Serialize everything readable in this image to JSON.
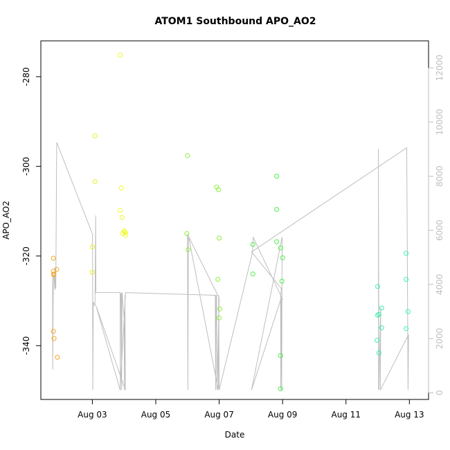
{
  "chart_data": {
    "type": "scatter",
    "title": "ATOM1 Southbound APO_AO2",
    "xlabel": "Date",
    "ylabel": "APO_AO2",
    "x_ticks": [
      "Aug 03",
      "Aug 05",
      "Aug 07",
      "Aug 09",
      "Aug 11",
      "Aug 13"
    ],
    "y_ticks": [
      -280,
      -300,
      -320,
      -340
    ],
    "y2_ticks": [
      0,
      2000,
      4000,
      6000,
      8000,
      10000,
      12000
    ],
    "xlim": [
      "2008-08-01 09:00",
      "2008-08-13 14:30"
    ],
    "ylim": [
      -352,
      -272
    ],
    "y2lim": [
      -250,
      13000
    ],
    "grid": false,
    "colors": {
      "altitude_line": "#bebebe",
      "right_axis": "#bebebe",
      "axis": "#000000",
      "text": "#000000"
    },
    "points": [
      {
        "x": "2008-08-01 18:30",
        "y": -320.5,
        "color": "#f5a623"
      },
      {
        "x": "2008-08-01 18:30",
        "y": -323.4,
        "color": "#f5a623"
      },
      {
        "x": "2008-08-01 18:45",
        "y": -324.2,
        "color": "#f5a623"
      },
      {
        "x": "2008-08-01 18:45",
        "y": -324.0,
        "color": "#f5a623"
      },
      {
        "x": "2008-08-01 18:30",
        "y": -336.8,
        "color": "#f5a623"
      },
      {
        "x": "2008-08-01 19:00",
        "y": -338.4,
        "color": "#f5a623"
      },
      {
        "x": "2008-08-01 21:00",
        "y": -323.0,
        "color": "#f5a623"
      },
      {
        "x": "2008-08-01 21:30",
        "y": -342.6,
        "color": "#f5a623"
      },
      {
        "x": "2008-08-03 00:00",
        "y": -318.0,
        "color": "#e8f020"
      },
      {
        "x": "2008-08-03 00:00",
        "y": -323.6,
        "color": "#e8f020"
      },
      {
        "x": "2008-08-03 02:00",
        "y": -293.2,
        "color": "#e8f020"
      },
      {
        "x": "2008-08-03 02:00",
        "y": -303.4,
        "color": "#e8f020"
      },
      {
        "x": "2008-08-03 21:00",
        "y": -275.2,
        "color": "#f0fa28"
      },
      {
        "x": "2008-08-03 21:00",
        "y": -309.8,
        "color": "#f0fa28"
      },
      {
        "x": "2008-08-03 22:00",
        "y": -304.8,
        "color": "#f0fa28"
      },
      {
        "x": "2008-08-03 22:30",
        "y": -311.4,
        "color": "#f0fa28"
      },
      {
        "x": "2008-08-03 23:00",
        "y": -315.0,
        "color": "#f0fa28"
      },
      {
        "x": "2008-08-04 00:00",
        "y": -314.4,
        "color": "#f0fa28"
      },
      {
        "x": "2008-08-04 00:30",
        "y": -314.6,
        "color": "#f0fa28"
      },
      {
        "x": "2008-08-04 01:00",
        "y": -314.8,
        "color": "#f0fa28"
      },
      {
        "x": "2008-08-04 01:00",
        "y": -315.4,
        "color": "#f0fa28"
      },
      {
        "x": "2008-08-06 00:00",
        "y": -297.6,
        "color": "#8ef03a"
      },
      {
        "x": "2008-08-05 23:30",
        "y": -315.0,
        "color": "#8ef03a"
      },
      {
        "x": "2008-08-06 00:30",
        "y": -318.6,
        "color": "#8ef03a"
      },
      {
        "x": "2008-08-06 22:00",
        "y": -304.6,
        "color": "#8ef03a"
      },
      {
        "x": "2008-08-06 23:30",
        "y": -305.2,
        "color": "#8ef03a"
      },
      {
        "x": "2008-08-07 00:00",
        "y": -316.0,
        "color": "#8ef03a"
      },
      {
        "x": "2008-08-06 23:00",
        "y": -325.2,
        "color": "#8ef03a"
      },
      {
        "x": "2008-08-07 00:30",
        "y": -331.8,
        "color": "#8ef03a"
      },
      {
        "x": "2008-08-07 00:00",
        "y": -333.8,
        "color": "#8ef03a"
      },
      {
        "x": "2008-08-08 01:30",
        "y": -317.4,
        "color": "#4ef048"
      },
      {
        "x": "2008-08-08 01:30",
        "y": -324.0,
        "color": "#4ef048"
      },
      {
        "x": "2008-08-08 19:30",
        "y": -302.2,
        "color": "#4ef048"
      },
      {
        "x": "2008-08-08 19:30",
        "y": -309.6,
        "color": "#4ef048"
      },
      {
        "x": "2008-08-08 19:30",
        "y": -316.8,
        "color": "#4ef048"
      },
      {
        "x": "2008-08-08 22:30",
        "y": -318.2,
        "color": "#4ef048"
      },
      {
        "x": "2008-08-09 00:00",
        "y": -320.4,
        "color": "#4ef048"
      },
      {
        "x": "2008-08-08 23:30",
        "y": -325.6,
        "color": "#4ef048"
      },
      {
        "x": "2008-08-08 22:30",
        "y": -342.2,
        "color": "#4ef048"
      },
      {
        "x": "2008-08-08 22:30",
        "y": -349.6,
        "color": "#4ef048"
      },
      {
        "x": "2008-08-12 00:00",
        "y": -326.8,
        "color": "#38f0a8"
      },
      {
        "x": "2008-08-12 00:00",
        "y": -333.2,
        "color": "#38f0a8"
      },
      {
        "x": "2008-08-12 01:00",
        "y": -333.0,
        "color": "#38f0a8"
      },
      {
        "x": "2008-08-11 23:30",
        "y": -338.8,
        "color": "#38f0a8"
      },
      {
        "x": "2008-08-12 01:00",
        "y": -341.6,
        "color": "#38f0a8"
      },
      {
        "x": "2008-08-12 03:00",
        "y": -331.6,
        "color": "#38f0a8"
      },
      {
        "x": "2008-08-12 03:00",
        "y": -336.0,
        "color": "#38f0a8"
      },
      {
        "x": "2008-08-12 21:30",
        "y": -319.4,
        "color": "#38f0b8"
      },
      {
        "x": "2008-08-12 21:30",
        "y": -325.2,
        "color": "#38f0b8"
      },
      {
        "x": "2008-08-12 23:00",
        "y": -332.4,
        "color": "#38f0b8"
      },
      {
        "x": "2008-08-12 21:30",
        "y": -336.2,
        "color": "#38f0b8"
      }
    ],
    "altitude_line": [
      [
        "2008-08-01 17:50",
        4450
      ],
      [
        "2008-08-01 18:00",
        850
      ],
      [
        "2008-08-01 18:20",
        3500
      ],
      [
        "2008-08-01 18:40",
        4200
      ],
      [
        "2008-08-01 19:00",
        4400
      ],
      [
        "2008-08-01 19:20",
        4100
      ],
      [
        "2008-08-01 19:40",
        3800
      ],
      [
        "2008-08-01 20:00",
        4600
      ],
      [
        "2008-08-01 20:20",
        3850
      ],
      [
        "2008-08-01 21:00",
        9250
      ],
      [
        "2008-08-03 00:10",
        5850
      ],
      [
        "2008-08-03 00:20",
        100
      ],
      [
        "2008-08-03 00:40",
        3350
      ],
      [
        "2008-08-03 02:00",
        3200
      ],
      [
        "2008-08-03 02:30",
        6550
      ],
      [
        "2008-08-03 02:40",
        3700
      ],
      [
        "2008-08-03 21:00",
        3700
      ],
      [
        "2008-08-03 21:10",
        100
      ],
      [
        "2008-08-03 21:30",
        3600
      ],
      [
        "2008-08-03 22:00",
        3700
      ],
      [
        "2008-08-03 22:10",
        100
      ],
      [
        "2008-08-03 22:30",
        3700
      ],
      [
        "2008-08-04 00:00",
        2800
      ],
      [
        "2008-08-04 00:20",
        100
      ],
      [
        "2008-08-04 00:40",
        3600
      ],
      [
        "2008-08-04 01:00",
        100
      ],
      [
        "2008-08-03 02:50",
        3200
      ],
      [
        "2008-08-03 21:00",
        100
      ],
      [
        "2008-08-04 01:10",
        3700
      ],
      [
        "2008-08-06 21:00",
        3600
      ],
      [
        "2008-08-06 21:20",
        100
      ],
      [
        "2008-08-06 21:40",
        3600
      ],
      [
        "2008-08-06 22:00",
        3600
      ],
      [
        "2008-08-06 22:20",
        100
      ],
      [
        "2008-08-07 00:00",
        3500
      ],
      [
        "2008-08-06 00:00",
        5850
      ],
      [
        "2008-08-06 00:20",
        100
      ],
      [
        "2008-08-06 00:40",
        5800
      ],
      [
        "2008-08-06 23:20",
        100
      ],
      [
        "2008-08-06 23:40",
        3600
      ],
      [
        "2008-08-07 00:00",
        100
      ],
      [
        "2008-08-08 01:20",
        5200
      ],
      [
        "2008-08-08 01:40",
        5750
      ],
      [
        "2008-08-09 00:00",
        3450
      ],
      [
        "2008-08-08 22:30",
        3400
      ],
      [
        "2008-08-08 22:40",
        100
      ],
      [
        "2008-08-08 23:00",
        3500
      ],
      [
        "2008-08-08 23:20",
        100
      ],
      [
        "2008-08-08 23:40",
        5750
      ],
      [
        "2008-08-08 00:30",
        100
      ],
      [
        "2008-08-08 22:20",
        3400
      ],
      [
        "2008-08-08 23:00",
        3850
      ],
      [
        "2008-08-08 00:30",
        5200
      ],
      [
        "2008-08-12 22:00",
        9050
      ],
      [
        "2008-08-12 23:00",
        100
      ],
      [
        "2008-08-12 23:20",
        2150
      ],
      [
        "2008-08-12 02:00",
        100
      ],
      [
        "2008-08-12 02:20",
        3150
      ],
      [
        "2008-08-12 01:00",
        100
      ],
      [
        "2008-08-12 00:30",
        9000
      ],
      [
        "2008-08-12 00:40",
        100
      ]
    ]
  }
}
